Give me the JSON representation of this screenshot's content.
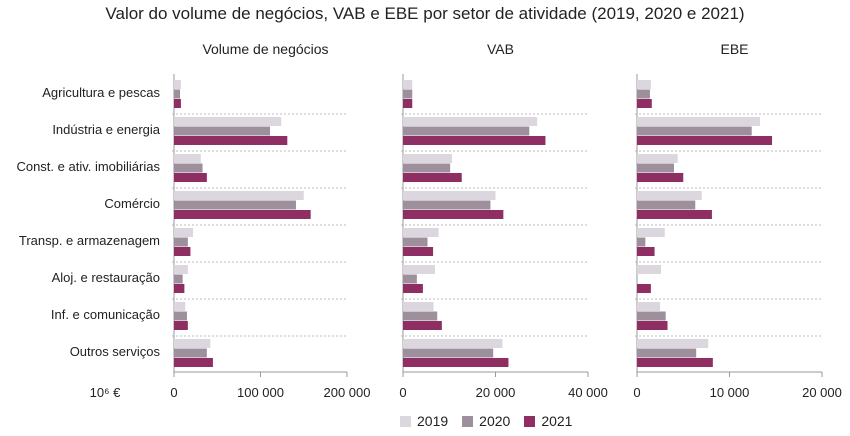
{
  "chart_data": {
    "type": "bar",
    "orientation": "horizontal",
    "title": "Valor do volume de negócios, VAB e EBE por setor de atividade (2019, 2020 e 2021)",
    "unit_label": "10⁶ €",
    "categories": [
      "Agricultura e pescas",
      "Indústria e energia",
      "Const. e ativ. imobiliárias",
      "Comércio",
      "Transp. e armazenagem",
      "Aloj. e restauração",
      "Inf. e comunicação",
      "Outros serviços"
    ],
    "legend": [
      "2019",
      "2020",
      "2021"
    ],
    "legend_placement": "bottom",
    "colors": [
      "#dcd7df",
      "#9e8f9d",
      "#8f2e63"
    ],
    "grid": false,
    "panels": [
      {
        "title": "Volume de negócios",
        "xlim": [
          0,
          200000
        ],
        "ticks": [
          "0",
          "100 000",
          "200 000"
        ],
        "tick_values": [
          0,
          100000,
          200000
        ],
        "series": [
          {
            "name": "2019",
            "values": [
              8000,
              124000,
              31000,
              150000,
              22000,
              16000,
              13000,
              42000
            ]
          },
          {
            "name": "2020",
            "values": [
              7000,
              111000,
              33000,
              141000,
              16000,
              10000,
              15000,
              38000
            ]
          },
          {
            "name": "2021",
            "values": [
              8000,
              131000,
              38000,
              158000,
              19000,
              12000,
              16000,
              45000
            ]
          }
        ]
      },
      {
        "title": "VAB",
        "xlim": [
          0,
          40000
        ],
        "ticks": [
          "0",
          "20 000",
          "40 000"
        ],
        "tick_values": [
          0,
          20000,
          40000
        ],
        "series": [
          {
            "name": "2019",
            "values": [
              2000,
              29000,
              10600,
              20000,
              7700,
              6900,
              6600,
              21500
            ]
          },
          {
            "name": "2020",
            "values": [
              2000,
              27300,
              10200,
              18900,
              5300,
              3000,
              7400,
              19500
            ]
          },
          {
            "name": "2021",
            "values": [
              2000,
              30800,
              12700,
              21700,
              6500,
              4300,
              8400,
              22800
            ]
          }
        ]
      },
      {
        "title": "EBE",
        "xlim": [
          0,
          20000
        ],
        "ticks": [
          "0",
          "10 000",
          "20 000"
        ],
        "tick_values": [
          0,
          10000,
          20000
        ],
        "series": [
          {
            "name": "2019",
            "values": [
              1500,
              13300,
              4400,
              7000,
              3000,
              2600,
              2500,
              7700
            ]
          },
          {
            "name": "2020",
            "values": [
              1400,
              12400,
              4000,
              6300,
              900,
              0,
              3100,
              6400
            ]
          },
          {
            "name": "2021",
            "values": [
              1600,
              14600,
              5000,
              8100,
              1900,
              1500,
              3300,
              8200
            ]
          }
        ]
      }
    ]
  }
}
